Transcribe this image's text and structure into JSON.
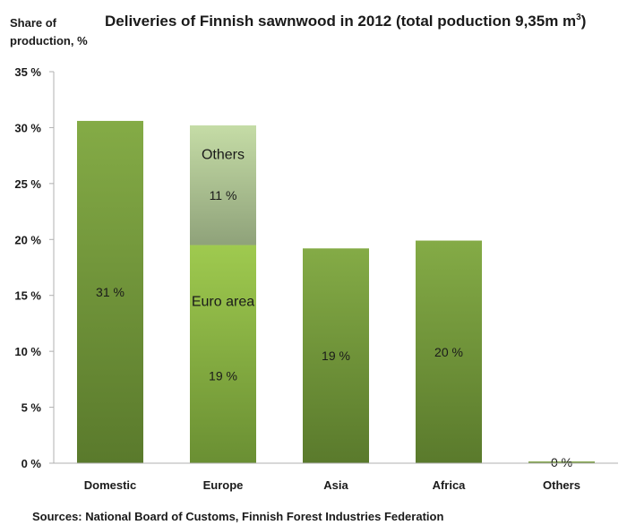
{
  "chart_data": {
    "type": "bar",
    "stacked": true,
    "title_main": "Deliveries of Finnish sawnwood in 2012 (total poduction 9,35m m",
    "title_sup": "3",
    "title_close": ")",
    "ylabel_line1": "Share of",
    "ylabel_line2": "production, %",
    "xlabel": "",
    "ylim": [
      0,
      35
    ],
    "ytick_step": 5,
    "ytick_labels": [
      "0 %",
      "5 %",
      "10 %",
      "15 %",
      "20 %",
      "25 %",
      "30 %",
      "35 %"
    ],
    "grid": false,
    "categories": [
      "Domestic",
      "Europe",
      "Asia",
      "Africa",
      "Others"
    ],
    "bars": [
      {
        "category": "Domestic",
        "segments": [
          {
            "value": 30.6,
            "label": "31 %",
            "name": "",
            "color_top": "#84ab46",
            "color_bottom": "#5a7a2c"
          }
        ]
      },
      {
        "category": "Europe",
        "segments": [
          {
            "value": 19.5,
            "label": "19 %",
            "name": "Euro area",
            "color_top": "#9fca4f",
            "color_bottom": "#6a8f33"
          },
          {
            "value": 10.7,
            "label": "11 %",
            "name": "Others",
            "color_top": "#c5dca6",
            "color_bottom": "#8fa27a"
          }
        ]
      },
      {
        "category": "Asia",
        "segments": [
          {
            "value": 19.2,
            "label": "19 %",
            "name": "",
            "color_top": "#84ab46",
            "color_bottom": "#5a7a2c"
          }
        ]
      },
      {
        "category": "Africa",
        "segments": [
          {
            "value": 19.9,
            "label": "20 %",
            "name": "",
            "color_top": "#84ab46",
            "color_bottom": "#5a7a2c"
          }
        ]
      },
      {
        "category": "Others",
        "segments": [
          {
            "value": 0.15,
            "label": "0 %",
            "name": "",
            "color_top": "#84ab46",
            "color_bottom": "#5a7a2c"
          }
        ]
      }
    ],
    "axis_color": "#b0b0b0"
  },
  "source": "Sources: National Board of Customs, Finnish Forest Industries Federation"
}
